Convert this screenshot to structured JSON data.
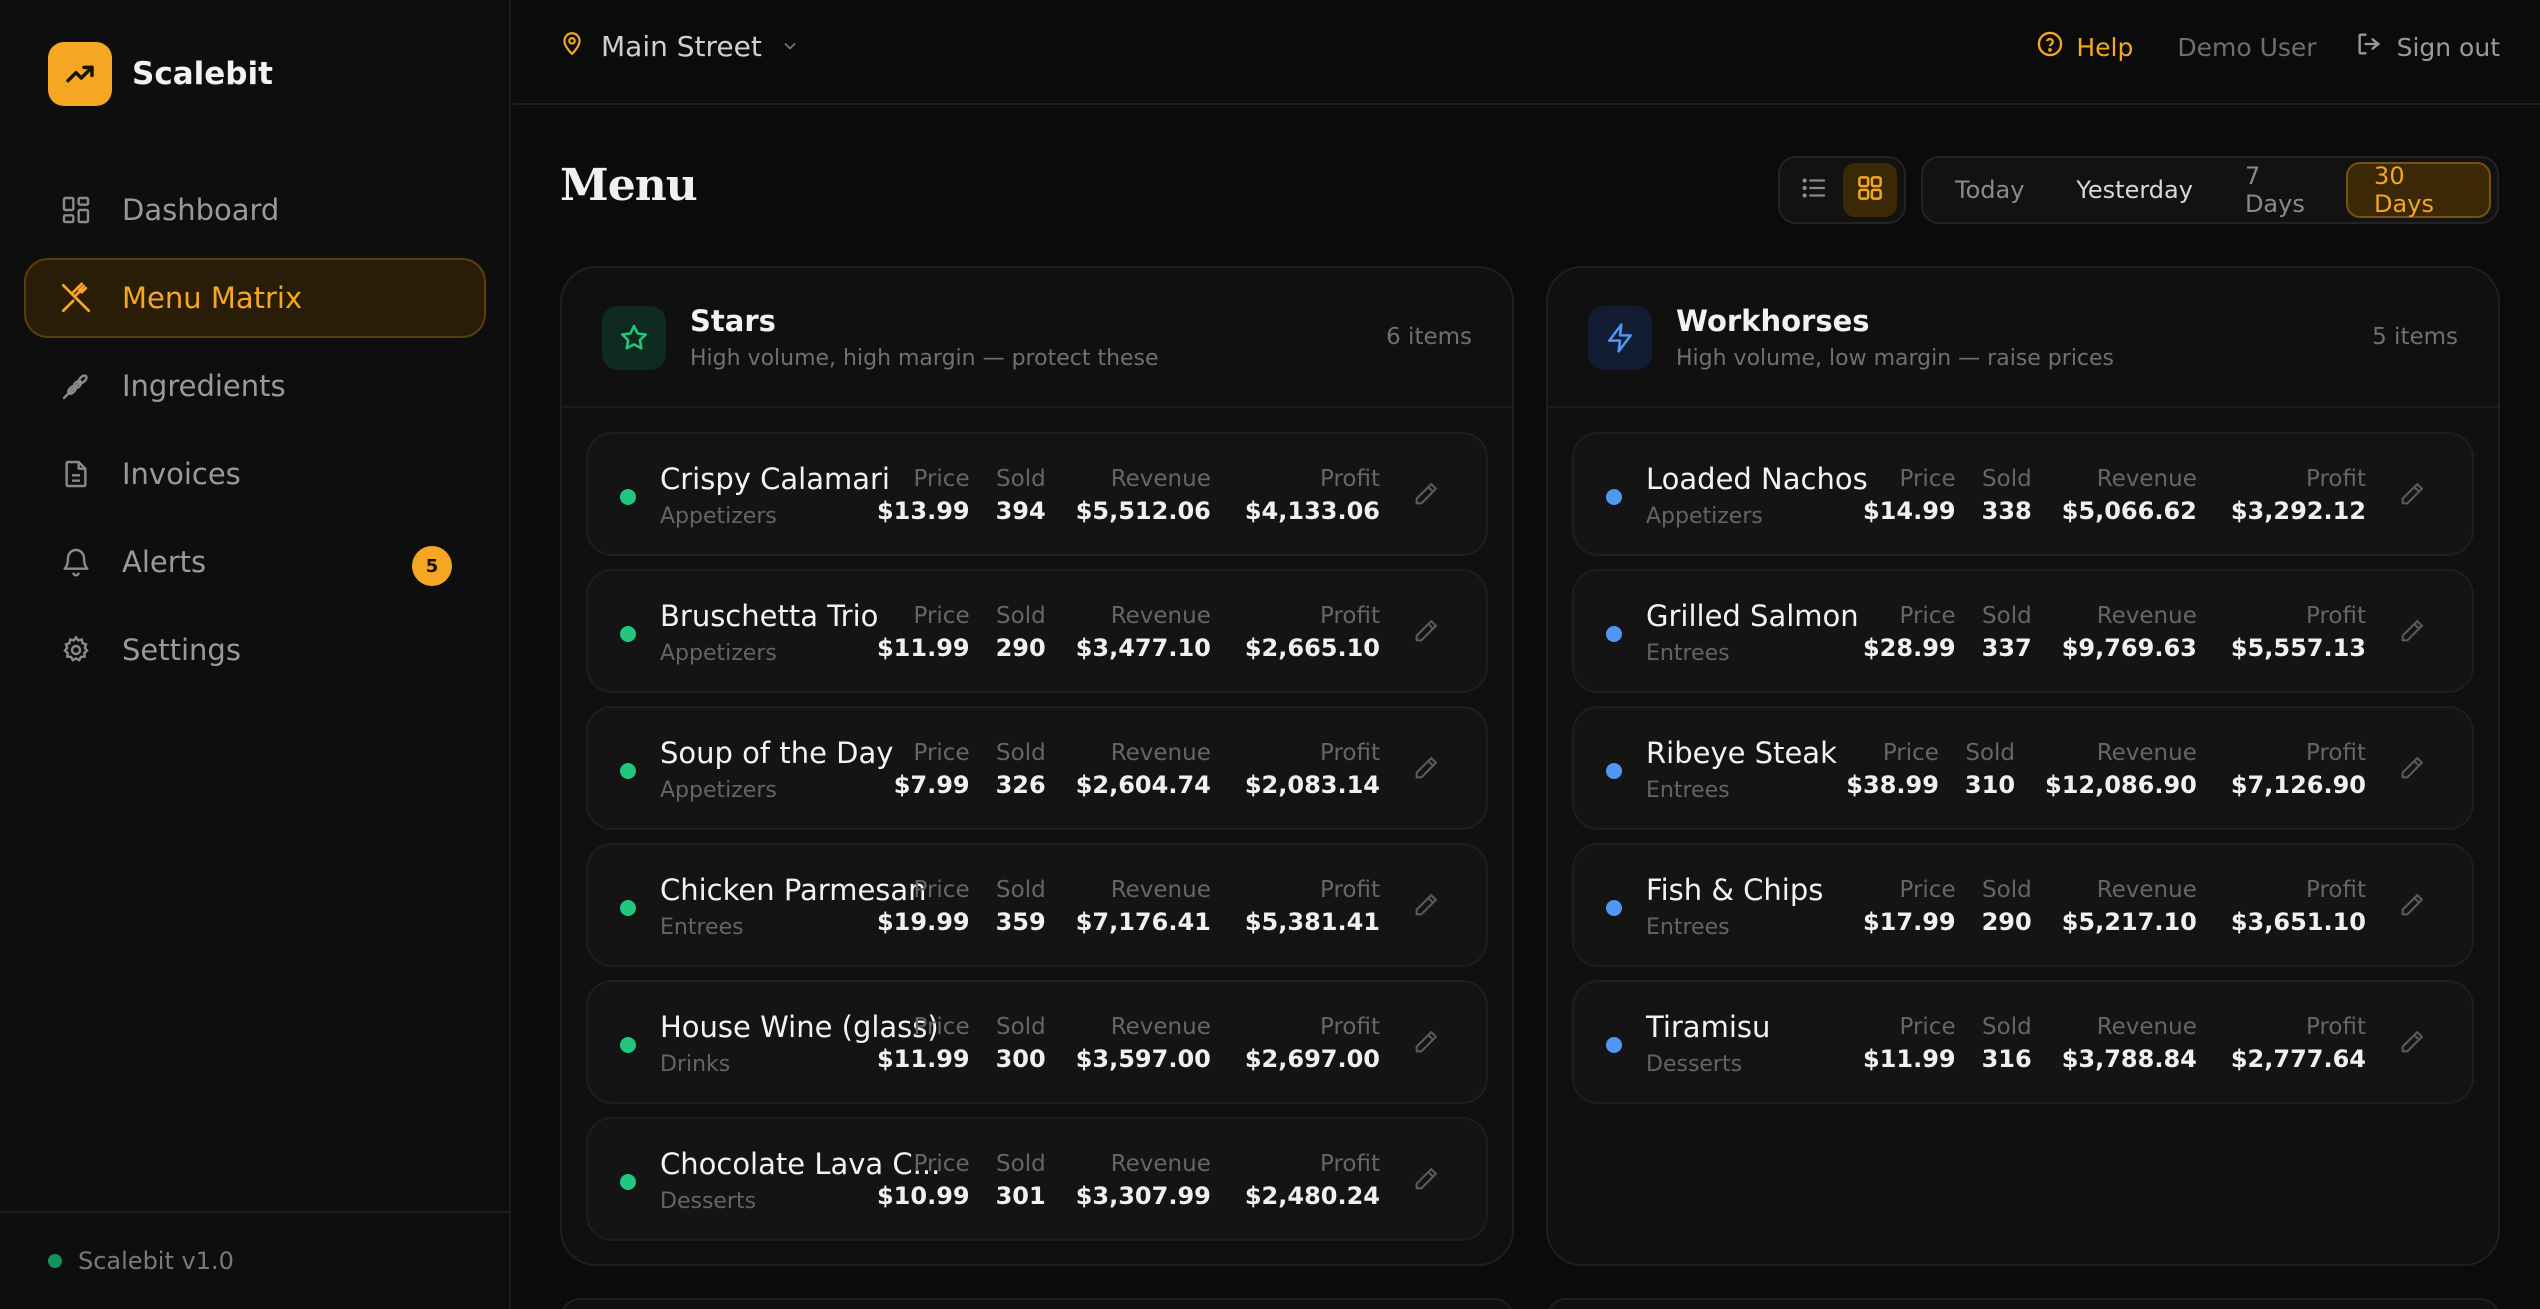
{
  "brand": {
    "name": "Scalebit",
    "version": "Scalebit v1.0"
  },
  "colors": {
    "accent": "#f5a623",
    "stars": "#20c77c",
    "workhorses": "#4f97f2"
  },
  "nav": {
    "items": [
      {
        "label": "Dashboard",
        "icon": "dashboard-grid-icon",
        "active": false
      },
      {
        "label": "Menu Matrix",
        "icon": "utensils-crossed-icon",
        "active": true
      },
      {
        "label": "Ingredients",
        "icon": "wheat-icon",
        "active": false
      },
      {
        "label": "Invoices",
        "icon": "file-text-icon",
        "active": false
      },
      {
        "label": "Alerts",
        "icon": "bell-icon",
        "active": false,
        "badge": "5"
      },
      {
        "label": "Settings",
        "icon": "gear-icon",
        "active": false
      }
    ]
  },
  "topbar": {
    "location": "Main Street",
    "help": "Help",
    "user": "Demo User",
    "signout": "Sign out"
  },
  "page": {
    "title": "Menu",
    "ranges": [
      "Today",
      "Yesterday",
      "7 Days",
      "30 Days"
    ],
    "active_range": "30 Days",
    "view": "grid"
  },
  "labels": {
    "price": "Price",
    "sold": "Sold",
    "revenue": "Revenue",
    "profit": "Profit"
  },
  "stars": {
    "title": "Stars",
    "subtitle": "High volume, high margin — protect these",
    "count": "6 items",
    "items": [
      {
        "name": "Crispy Calamari",
        "category": "Appetizers",
        "price": "$13.99",
        "sold": "394",
        "revenue": "$5,512.06",
        "profit": "$4,133.06"
      },
      {
        "name": "Bruschetta Trio",
        "category": "Appetizers",
        "price": "$11.99",
        "sold": "290",
        "revenue": "$3,477.10",
        "profit": "$2,665.10"
      },
      {
        "name": "Soup of the Day",
        "category": "Appetizers",
        "price": "$7.99",
        "sold": "326",
        "revenue": "$2,604.74",
        "profit": "$2,083.14"
      },
      {
        "name": "Chicken Parmesan",
        "category": "Entrees",
        "price": "$19.99",
        "sold": "359",
        "revenue": "$7,176.41",
        "profit": "$5,381.41"
      },
      {
        "name": "House Wine (glass)",
        "category": "Drinks",
        "price": "$11.99",
        "sold": "300",
        "revenue": "$3,597.00",
        "profit": "$2,697.00"
      },
      {
        "name": "Chocolate Lava C...",
        "category": "Desserts",
        "price": "$10.99",
        "sold": "301",
        "revenue": "$3,307.99",
        "profit": "$2,480.24"
      }
    ]
  },
  "workhorses": {
    "title": "Workhorses",
    "subtitle": "High volume, low margin — raise prices",
    "count": "5 items",
    "items": [
      {
        "name": "Loaded Nachos",
        "category": "Appetizers",
        "price": "$14.99",
        "sold": "338",
        "revenue": "$5,066.62",
        "profit": "$3,292.12"
      },
      {
        "name": "Grilled Salmon",
        "category": "Entrees",
        "price": "$28.99",
        "sold": "337",
        "revenue": "$9,769.63",
        "profit": "$5,557.13"
      },
      {
        "name": "Ribeye Steak",
        "category": "Entrees",
        "price": "$38.99",
        "sold": "310",
        "revenue": "$12,086.90",
        "profit": "$7,126.90"
      },
      {
        "name": "Fish & Chips",
        "category": "Entrees",
        "price": "$17.99",
        "sold": "290",
        "revenue": "$5,217.10",
        "profit": "$3,651.10"
      },
      {
        "name": "Tiramisu",
        "category": "Desserts",
        "price": "$11.99",
        "sold": "316",
        "revenue": "$3,788.84",
        "profit": "$2,777.64"
      }
    ]
  }
}
